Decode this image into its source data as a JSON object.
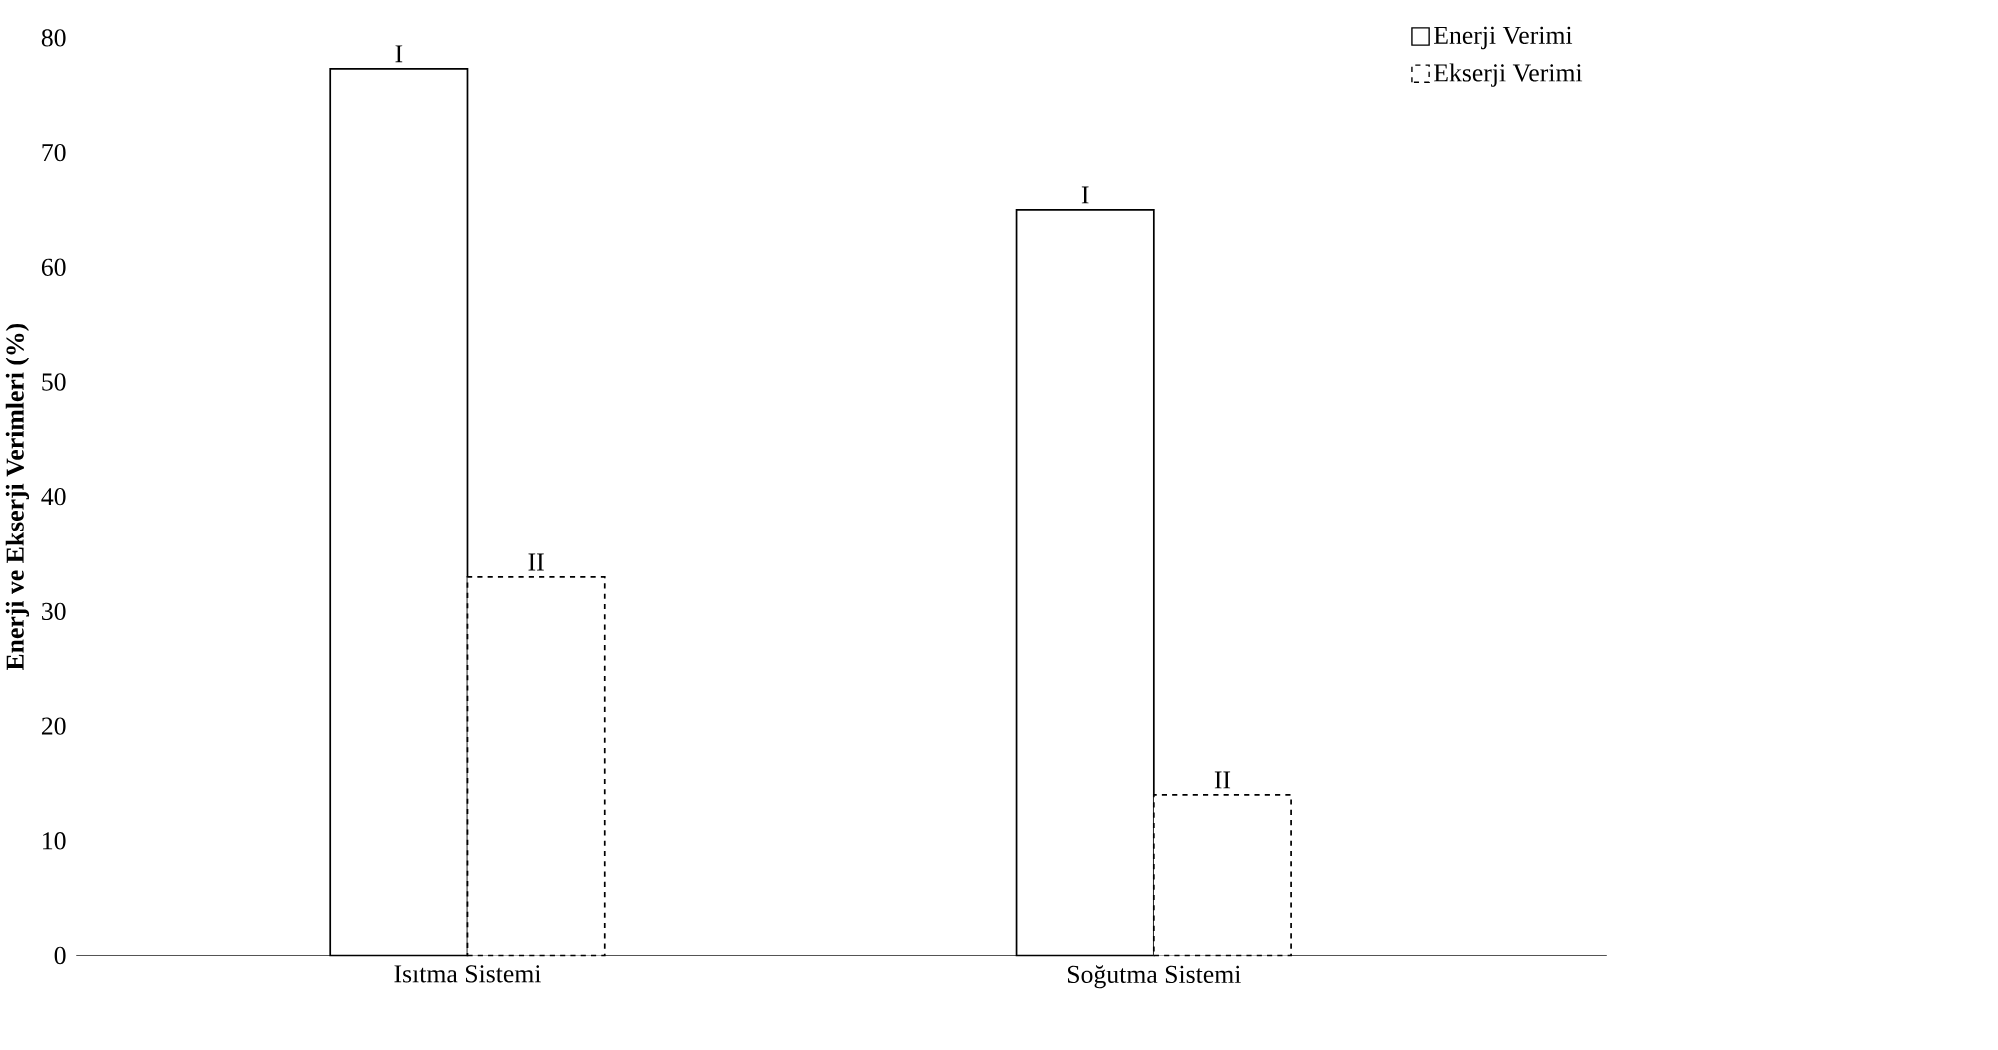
{
  "chart_data": {
    "type": "bar",
    "ylabel": "Enerji ve Ekserji Verimleri (%)",
    "categories": [
      "Isıtma Sistemi",
      "Soğutma Sistemi"
    ],
    "series": [
      {
        "name": "Enerji Verimi",
        "color": "#ffffff",
        "line_style": "solid",
        "values": [
          77.3,
          65
        ],
        "value_labels": [
          "I",
          "I"
        ]
      },
      {
        "name": "Ekserji Verimi",
        "color": "#ffffff",
        "line_style": "dashed",
        "values": [
          33,
          14
        ],
        "value_labels": [
          "II",
          "II"
        ]
      }
    ],
    "ylim": [
      0,
      80
    ],
    "yticks": [
      0,
      10,
      20,
      30,
      40,
      50,
      60,
      70,
      80
    ],
    "grid": false,
    "legend": "top right"
  }
}
